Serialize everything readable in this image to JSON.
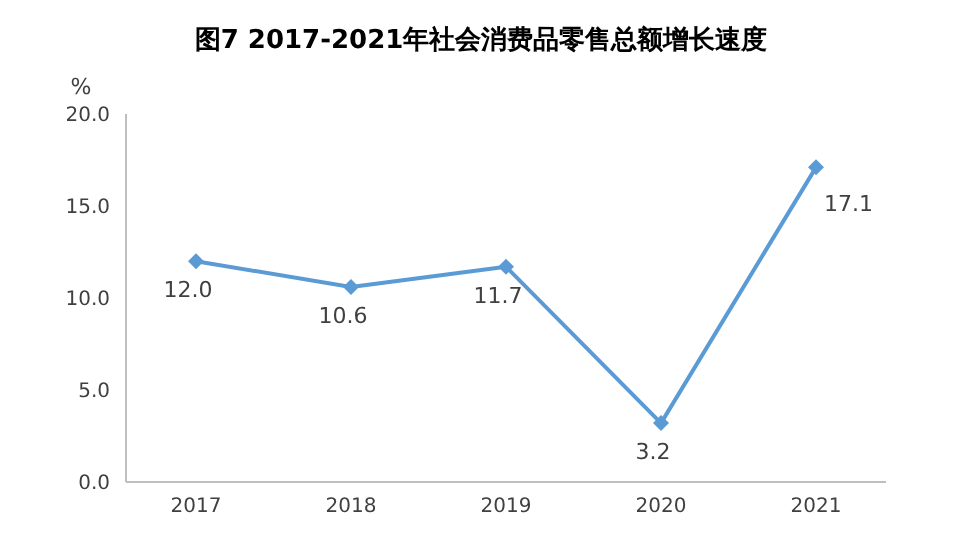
{
  "chart_data": {
    "type": "line",
    "title": "图7 2017-2021年社会消费品零售总额增长速度",
    "ylabel": "%",
    "categories": [
      "2017",
      "2018",
      "2019",
      "2020",
      "2021"
    ],
    "series": [
      {
        "color": "#5b9bd5",
        "values": [
          12.0,
          10.6,
          11.7,
          3.2,
          17.1
        ],
        "value_labels": [
          "12.0",
          "10.6",
          "11.7",
          "3.2",
          "17.1"
        ]
      }
    ],
    "ylim": [
      0,
      20
    ],
    "yticks": [
      {
        "value": 0,
        "label": "0.0"
      },
      {
        "value": 5,
        "label": "5.0"
      },
      {
        "value": 10,
        "label": "10.0"
      },
      {
        "value": 15,
        "label": "15.0"
      },
      {
        "value": 20,
        "label": "20.0"
      }
    ],
    "grid": false,
    "legend": false,
    "marker": "diamond",
    "line_style": "solid"
  }
}
